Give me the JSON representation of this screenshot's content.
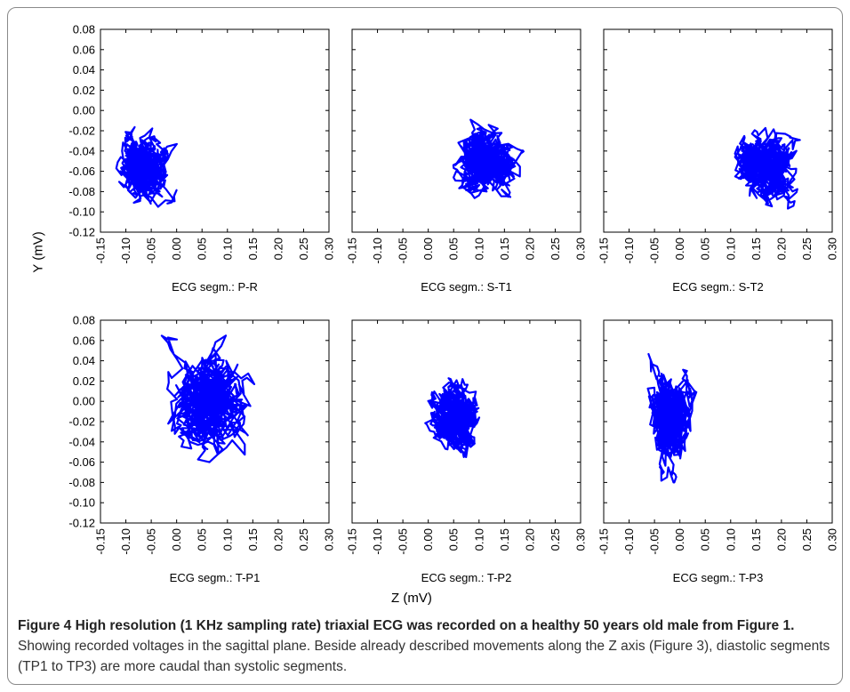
{
  "figure": {
    "ylabel": "Y (mV)",
    "xlabel": "Z (mV)",
    "caption_lead": "Figure 4 High resolution (1 KHz sampling rate) triaxial ECG was recorded on a healthy 50 years old male from Figure 1.",
    "caption_text": " Showing recorded voltages in the sagittal plane. Beside already described movements along the Z axis (Figure 3), diastolic segments (TP1 to TP3) are more caudal than systolic segments."
  },
  "chart_data": [
    {
      "type": "scatter",
      "panel_label": "ECG segm.: P-R",
      "x_ticks": [
        "-0.15",
        "-0.10",
        "-0.05",
        "0.00",
        "0.05",
        "0.10",
        "0.15",
        "0.20",
        "0.25",
        "0.30"
      ],
      "y_ticks": [
        "0.08",
        "0.06",
        "0.04",
        "0.02",
        "0.00",
        "-0.02",
        "-0.04",
        "-0.06",
        "-0.08",
        "-0.10",
        "-0.12"
      ],
      "xlim": [
        -0.15,
        0.3
      ],
      "ylim": [
        -0.12,
        0.08
      ],
      "color": "#0000ff",
      "cloud": {
        "x_range": [
          -0.12,
          0.01
        ],
        "y_range": [
          -0.095,
          -0.01
        ],
        "x_center": -0.06,
        "y_center": -0.055
      }
    },
    {
      "type": "scatter",
      "panel_label": "ECG segm.: S-T1",
      "x_ticks": [
        "-0.15",
        "-0.10",
        "-0.05",
        "0.00",
        "0.05",
        "0.10",
        "0.15",
        "0.20",
        "0.25",
        "0.30"
      ],
      "y_ticks": [],
      "xlim": [
        -0.15,
        0.3
      ],
      "ylim": [
        -0.12,
        0.08
      ],
      "color": "#0000ff",
      "cloud": {
        "x_range": [
          0.04,
          0.2
        ],
        "y_range": [
          -0.09,
          0.0
        ],
        "x_center": 0.11,
        "y_center": -0.05
      }
    },
    {
      "type": "scatter",
      "panel_label": "ECG segm.: S-T2",
      "x_ticks": [
        "-0.15",
        "-0.10",
        "-0.05",
        "0.00",
        "0.05",
        "0.10",
        "0.15",
        "0.20",
        "0.25",
        "0.30"
      ],
      "y_ticks": [],
      "xlim": [
        -0.15,
        0.3
      ],
      "ylim": [
        -0.12,
        0.08
      ],
      "color": "#0000ff",
      "cloud": {
        "x_range": [
          0.1,
          0.25
        ],
        "y_range": [
          -0.1,
          -0.01
        ],
        "x_center": 0.165,
        "y_center": -0.055
      }
    },
    {
      "type": "scatter",
      "panel_label": "ECG segm.: T-P1",
      "x_ticks": [
        "-0.15",
        "-0.10",
        "-0.05",
        "0.00",
        "0.05",
        "0.10",
        "0.15",
        "0.20",
        "0.25",
        "0.30"
      ],
      "y_ticks": [
        "0.08",
        "0.06",
        "0.04",
        "0.02",
        "0.00",
        "-0.02",
        "-0.04",
        "-0.06",
        "-0.08",
        "-0.10",
        "-0.12"
      ],
      "xlim": [
        -0.15,
        0.3
      ],
      "ylim": [
        -0.12,
        0.08
      ],
      "color": "#0000ff",
      "cloud": {
        "x_range": [
          -0.04,
          0.17
        ],
        "y_range": [
          -0.06,
          0.065
        ],
        "x_center": 0.05,
        "y_center": 0.0
      }
    },
    {
      "type": "scatter",
      "panel_label": "ECG segm.: T-P2",
      "x_ticks": [
        "-0.15",
        "-0.10",
        "-0.05",
        "0.00",
        "0.05",
        "0.10",
        "0.15",
        "0.20",
        "0.25",
        "0.30"
      ],
      "y_ticks": [],
      "xlim": [
        -0.15,
        0.3
      ],
      "ylim": [
        -0.12,
        0.08
      ],
      "color": "#0000ff",
      "cloud": {
        "x_range": [
          -0.01,
          0.11
        ],
        "y_range": [
          -0.055,
          0.03
        ],
        "x_center": 0.055,
        "y_center": -0.015
      }
    },
    {
      "type": "scatter",
      "panel_label": "ECG segm.: T-P3",
      "x_ticks": [
        "-0.15",
        "-0.10",
        "-0.05",
        "0.00",
        "0.05",
        "0.10",
        "0.15",
        "0.20",
        "0.25",
        "0.30"
      ],
      "y_ticks": [],
      "xlim": [
        -0.15,
        0.3
      ],
      "ylim": [
        -0.12,
        0.08
      ],
      "color": "#0000ff",
      "cloud": {
        "x_range": [
          -0.07,
          0.035
        ],
        "y_range": [
          -0.08,
          0.05
        ],
        "x_center": -0.02,
        "y_center": -0.015
      }
    }
  ]
}
